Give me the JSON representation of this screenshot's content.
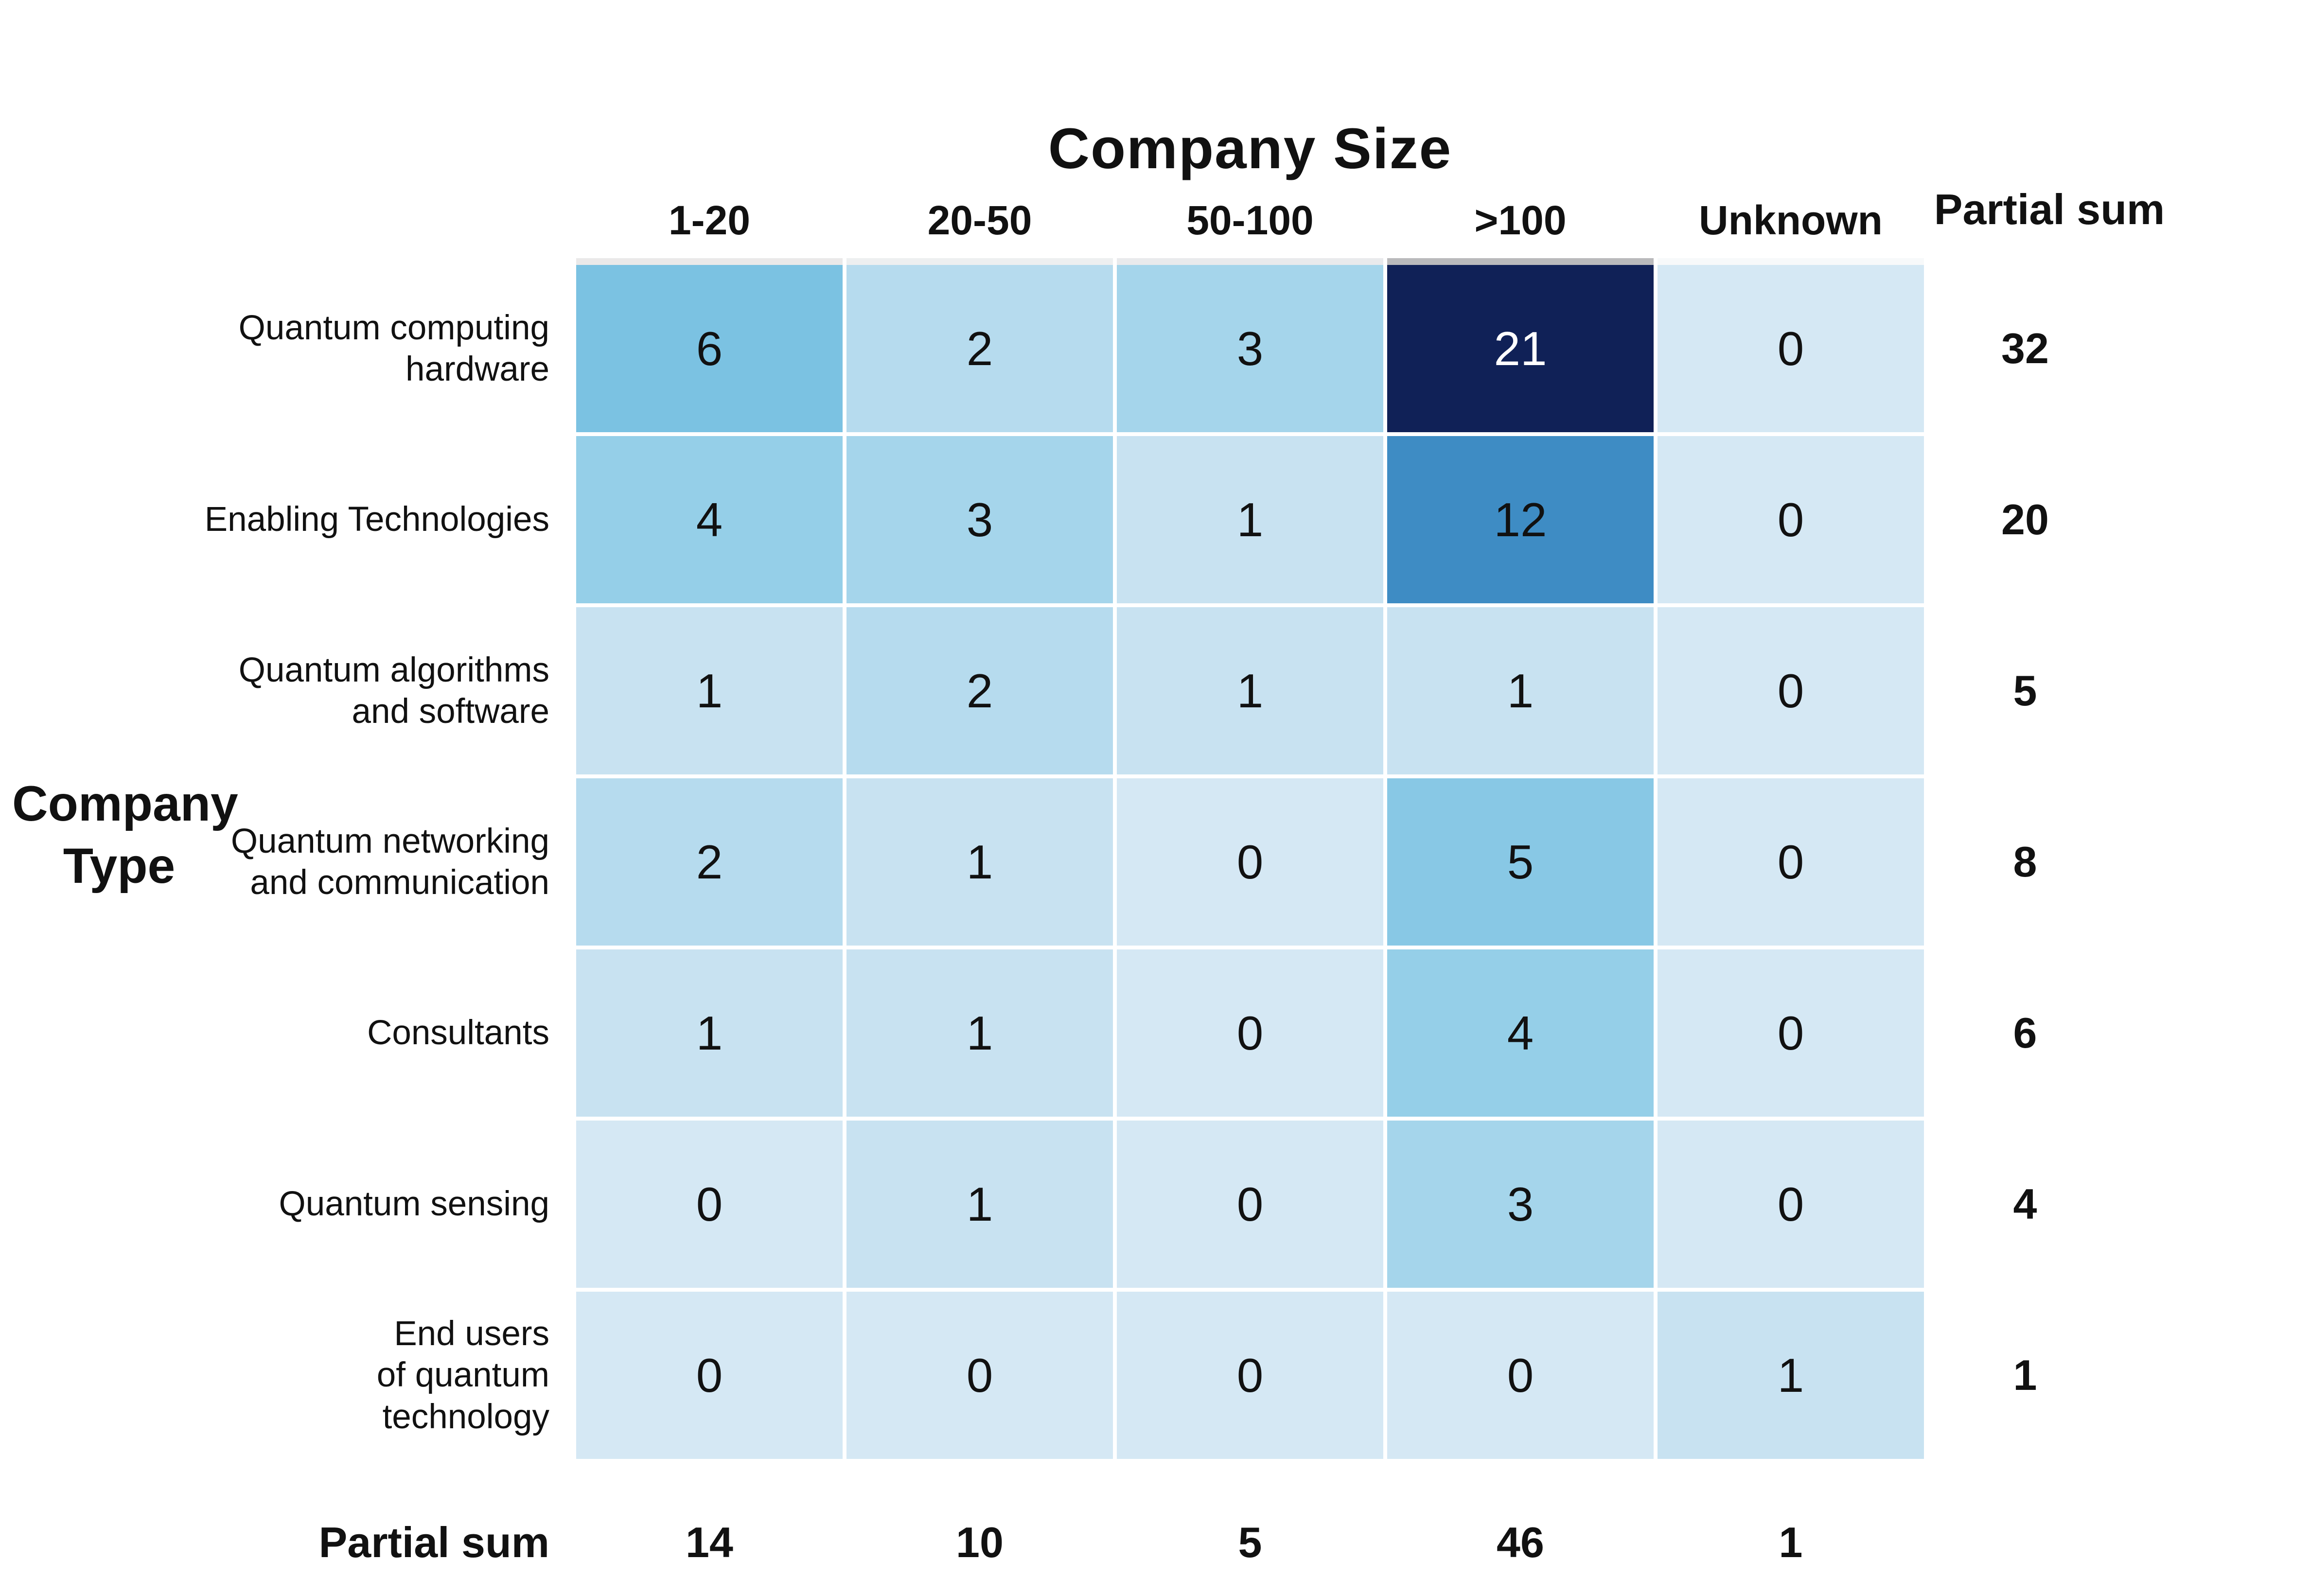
{
  "chart_data": {
    "type": "heatmap",
    "title": "Company Size",
    "x_axis_title": "Company Size",
    "y_axis_title": "Company Type",
    "y_axis_title_lines": [
      "Company",
      "Type"
    ],
    "x_categories": [
      "1-20",
      "20-50",
      "50-100",
      ">100",
      "Unknown"
    ],
    "y_categories": [
      "Quantum computing hardware",
      "Enabling Technologies",
      "Quantum algorithms and software",
      "Quantum networking and communication",
      "Consultants",
      "Quantum sensing",
      "End users of quantum technology"
    ],
    "y_category_label_lines": [
      [
        "Quantum computing",
        "hardware"
      ],
      [
        "Enabling Technologies"
      ],
      [
        "Quantum algorithms",
        "and software"
      ],
      [
        "Quantum networking",
        "and communication"
      ],
      [
        "Consultants"
      ],
      [
        "Quantum sensing"
      ],
      [
        "End users",
        "of quantum",
        "technology"
      ]
    ],
    "values": [
      [
        6,
        2,
        3,
        21,
        0
      ],
      [
        4,
        3,
        1,
        12,
        0
      ],
      [
        1,
        2,
        1,
        1,
        0
      ],
      [
        2,
        1,
        0,
        5,
        0
      ],
      [
        1,
        1,
        0,
        4,
        0
      ],
      [
        0,
        1,
        0,
        3,
        0
      ],
      [
        0,
        0,
        0,
        0,
        1
      ]
    ],
    "partial_sum_label": "Partial sum",
    "row_partial_sums": [
      32,
      20,
      5,
      8,
      6,
      4,
      1
    ],
    "col_partial_sums": [
      14,
      10,
      5,
      46,
      1
    ],
    "colormap": "Blues",
    "value_range": [
      0,
      21
    ],
    "grid_gap_color": "#ffffff",
    "cell_colors": {
      "0": "#d5e8f4",
      "1": "#c8e2f1",
      "2": "#b6dbee",
      "3": "#a5d5eb",
      "4": "#95cfe8",
      "5": "#88c8e5",
      "6": "#7bc2e2",
      "12": "#3e8cc4",
      "21": "#102157"
    },
    "cell_text_color_default": "#111111",
    "cell_text_color_dark_cells": "#ffffff",
    "dark_text_threshold": 15,
    "top_strip_colors": [
      "#eae9e9",
      "#edeff0",
      "#e9eaec",
      "#bababc",
      "#f7f9fa"
    ]
  }
}
